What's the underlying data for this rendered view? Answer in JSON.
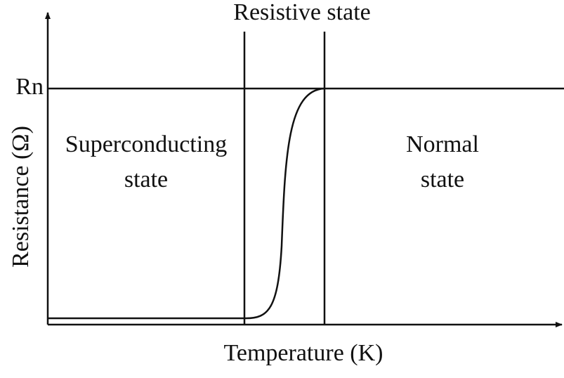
{
  "title": "Resistive state",
  "y_level_label": "Rn",
  "y_axis_label": "Resistance (Ω)",
  "x_axis_label": "Temperature (K)",
  "regions": [
    {
      "lines": [
        "Superconducting",
        "state"
      ]
    },
    {
      "lines": [
        "Normal",
        "state"
      ]
    }
  ]
}
